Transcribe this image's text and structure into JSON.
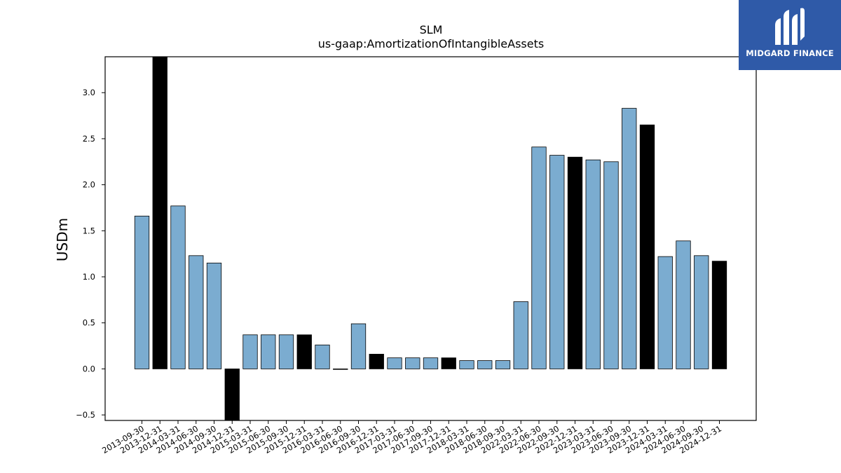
{
  "brand": {
    "name": "MIDGARD FINANCE",
    "color": "#2f5aa8",
    "icon": "midgard-logo-icon"
  },
  "chart_data": {
    "type": "bar",
    "title": "SLM",
    "subtitle": "us-gaap:AmortizationOfIntangibleAssets",
    "xlabel": "",
    "ylabel": "USDm",
    "ylim": [
      -0.56,
      3.39
    ],
    "yticks": [
      -0.5,
      0.0,
      0.5,
      1.0,
      1.5,
      2.0,
      2.5,
      3.0
    ],
    "ytick_labels": [
      "−0.5",
      "0.0",
      "0.5",
      "1.0",
      "1.5",
      "2.0",
      "2.5",
      "3.0"
    ],
    "grid": false,
    "colors": {
      "quarter": "#7bacd0",
      "year_end": "#000000",
      "edge": "#000000"
    },
    "categories": [
      "2013-09-30",
      "2013-12-31",
      "2014-03-31",
      "2014-06-30",
      "2014-09-30",
      "2014-12-31",
      "2015-03-31",
      "2015-06-30",
      "2015-09-30",
      "2015-12-31",
      "2016-03-31",
      "2016-06-30",
      "2016-09-30",
      "2016-12-31",
      "2017-03-31",
      "2017-06-30",
      "2017-09-30",
      "2017-12-31",
      "2018-03-31",
      "2018-06-30",
      "2018-09-30",
      "2022-03-31",
      "2022-06-30",
      "2022-09-30",
      "2022-12-31",
      "2023-03-31",
      "2023-06-30",
      "2023-09-30",
      "2023-12-31",
      "2024-03-31",
      "2024-06-30",
      "2024-09-30",
      "2024-12-31"
    ],
    "values": [
      1.66,
      3.4,
      1.77,
      1.23,
      1.15,
      -0.6,
      0.37,
      0.37,
      0.37,
      0.37,
      0.26,
      0.0,
      0.49,
      0.16,
      0.12,
      0.12,
      0.12,
      0.12,
      0.09,
      0.09,
      0.09,
      0.73,
      2.41,
      2.32,
      2.3,
      2.27,
      2.25,
      2.83,
      2.65,
      1.22,
      1.39,
      1.23,
      1.17
    ],
    "year_end": [
      false,
      true,
      false,
      false,
      false,
      true,
      false,
      false,
      false,
      true,
      false,
      false,
      false,
      true,
      false,
      false,
      false,
      true,
      false,
      false,
      false,
      false,
      false,
      false,
      true,
      false,
      false,
      false,
      true,
      false,
      false,
      false,
      true
    ]
  }
}
